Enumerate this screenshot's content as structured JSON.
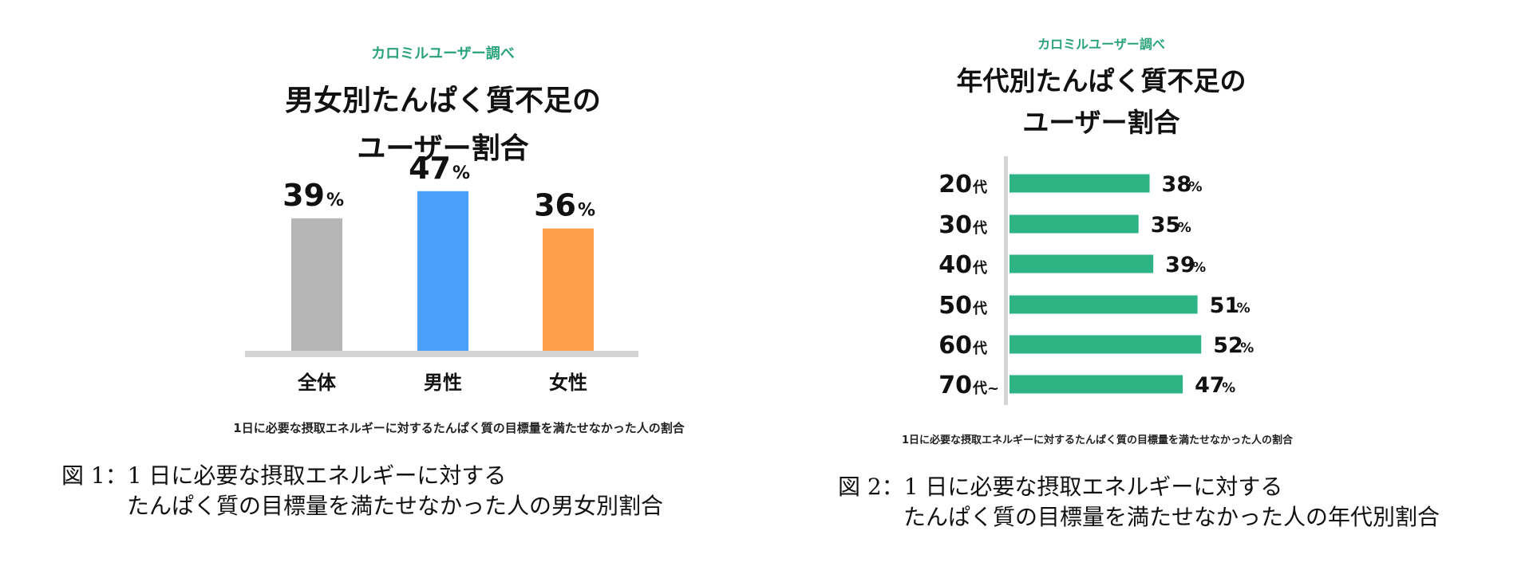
{
  "figures": [
    {
      "caption_line1": "図 1：1 日に必要な摂取エネルギーに対する",
      "caption_line2": "たんぱく質の目標量を満たせなかった人の男女別割合"
    },
    {
      "caption_line1": "図 2：1 日に必要な摂取エネルギーに対する",
      "caption_line2": "たんぱく質の目標量を満たせなかった人の年代別割合"
    }
  ],
  "chart_data": [
    {
      "type": "bar",
      "subtitle": "カロミルユーザー調べ",
      "title_line1": "男女別たんぱく質不足の",
      "title_line2": "ユーザー割合",
      "categories": [
        "全体",
        "男性",
        "女性"
      ],
      "values": [
        39,
        47,
        36
      ],
      "unit": "%",
      "colors": [
        "#b6b6b6",
        "#4aa0fb",
        "#fea04a"
      ],
      "baseline_color": "#d4d4d4",
      "note": "1日に必要な摂取エネルギーに対するたんぱく質の目標量を満たせなかった人の割合"
    },
    {
      "type": "bar",
      "orientation": "horizontal",
      "subtitle": "カロミルユーザー調べ",
      "title_line1": "年代別たんぱく質不足の",
      "title_line2": "ユーザー割合",
      "categories": [
        {
          "num": "20",
          "suffix": "代"
        },
        {
          "num": "30",
          "suffix": "代"
        },
        {
          "num": "40",
          "suffix": "代"
        },
        {
          "num": "50",
          "suffix": "代"
        },
        {
          "num": "60",
          "suffix": "代"
        },
        {
          "num": "70",
          "suffix": "代~"
        }
      ],
      "values": [
        38,
        35,
        39,
        51,
        52,
        47
      ],
      "unit": "%",
      "bar_color": "#2db384",
      "axis_color": "#d4d4d4",
      "note": "1日に必要な摂取エネルギーに対するたんぱく質の目標量を満たせなかった人の割合"
    }
  ]
}
